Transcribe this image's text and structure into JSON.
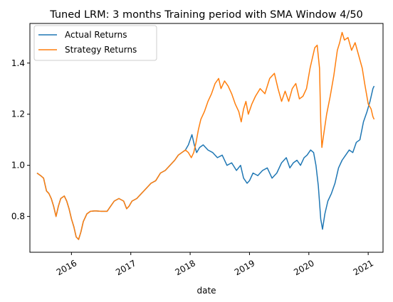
{
  "chart_data": {
    "type": "line",
    "title": "Tuned LRM: 3 months Training period with SMA Window 4/50",
    "xlabel": "date",
    "ylabel": "",
    "xlim": [
      2015.3,
      2021.25
    ],
    "ylim": [
      0.66,
      1.555
    ],
    "grid": false,
    "legend_position": "upper-left",
    "x_ticks": [
      {
        "label": "2016",
        "value": 2016.0
      },
      {
        "label": "2017",
        "value": 2017.0
      },
      {
        "label": "2018",
        "value": 2018.0
      },
      {
        "label": "2019",
        "value": 2019.0
      },
      {
        "label": "2020",
        "value": 2020.0
      },
      {
        "label": "2021",
        "value": 2021.0
      }
    ],
    "y_ticks": [
      {
        "label": "0.8",
        "value": 0.8
      },
      {
        "label": "1.0",
        "value": 1.0
      },
      {
        "label": "1.2",
        "value": 1.2
      },
      {
        "label": "1.4",
        "value": 1.4
      }
    ],
    "series": [
      {
        "name": "Actual Returns",
        "color": "#1f77b4",
        "points": [
          [
            2015.42,
            0.97
          ],
          [
            2015.48,
            0.96
          ],
          [
            2015.53,
            0.95
          ],
          [
            2015.58,
            0.9
          ],
          [
            2015.62,
            0.89
          ],
          [
            2015.66,
            0.87
          ],
          [
            2015.7,
            0.84
          ],
          [
            2015.74,
            0.8
          ],
          [
            2015.78,
            0.84
          ],
          [
            2015.82,
            0.87
          ],
          [
            2015.88,
            0.88
          ],
          [
            2015.92,
            0.86
          ],
          [
            2015.96,
            0.83
          ],
          [
            2016.0,
            0.79
          ],
          [
            2016.04,
            0.76
          ],
          [
            2016.08,
            0.72
          ],
          [
            2016.12,
            0.71
          ],
          [
            2016.16,
            0.74
          ],
          [
            2016.2,
            0.78
          ],
          [
            2016.26,
            0.81
          ],
          [
            2016.32,
            0.82
          ],
          [
            2016.4,
            0.822
          ],
          [
            2016.5,
            0.82
          ],
          [
            2016.6,
            0.82
          ],
          [
            2016.66,
            0.84
          ],
          [
            2016.72,
            0.86
          ],
          [
            2016.8,
            0.87
          ],
          [
            2016.88,
            0.86
          ],
          [
            2016.93,
            0.83
          ],
          [
            2016.97,
            0.84
          ],
          [
            2017.02,
            0.86
          ],
          [
            2017.1,
            0.87
          ],
          [
            2017.18,
            0.89
          ],
          [
            2017.26,
            0.91
          ],
          [
            2017.34,
            0.93
          ],
          [
            2017.42,
            0.94
          ],
          [
            2017.5,
            0.97
          ],
          [
            2017.58,
            0.98
          ],
          [
            2017.66,
            1.0
          ],
          [
            2017.74,
            1.02
          ],
          [
            2017.8,
            1.04
          ],
          [
            2017.86,
            1.05
          ],
          [
            2017.92,
            1.06
          ],
          [
            2017.97,
            1.08
          ],
          [
            2018.03,
            1.12
          ],
          [
            2018.07,
            1.08
          ],
          [
            2018.11,
            1.05
          ],
          [
            2018.16,
            1.07
          ],
          [
            2018.22,
            1.08
          ],
          [
            2018.3,
            1.06
          ],
          [
            2018.38,
            1.05
          ],
          [
            2018.46,
            1.03
          ],
          [
            2018.54,
            1.04
          ],
          [
            2018.62,
            1.0
          ],
          [
            2018.7,
            1.01
          ],
          [
            2018.78,
            0.98
          ],
          [
            2018.85,
            1.0
          ],
          [
            2018.9,
            0.95
          ],
          [
            2018.96,
            0.93
          ],
          [
            2019.0,
            0.94
          ],
          [
            2019.06,
            0.97
          ],
          [
            2019.14,
            0.96
          ],
          [
            2019.22,
            0.98
          ],
          [
            2019.3,
            0.99
          ],
          [
            2019.38,
            0.95
          ],
          [
            2019.46,
            0.97
          ],
          [
            2019.54,
            1.01
          ],
          [
            2019.62,
            1.03
          ],
          [
            2019.68,
            0.99
          ],
          [
            2019.74,
            1.01
          ],
          [
            2019.8,
            1.02
          ],
          [
            2019.86,
            1.0
          ],
          [
            2019.92,
            1.03
          ],
          [
            2019.97,
            1.04
          ],
          [
            2020.03,
            1.06
          ],
          [
            2020.08,
            1.05
          ],
          [
            2020.12,
            1.0
          ],
          [
            2020.16,
            0.92
          ],
          [
            2020.2,
            0.79
          ],
          [
            2020.23,
            0.75
          ],
          [
            2020.27,
            0.81
          ],
          [
            2020.32,
            0.86
          ],
          [
            2020.38,
            0.89
          ],
          [
            2020.44,
            0.93
          ],
          [
            2020.5,
            0.99
          ],
          [
            2020.56,
            1.02
          ],
          [
            2020.62,
            1.04
          ],
          [
            2020.68,
            1.06
          ],
          [
            2020.74,
            1.05
          ],
          [
            2020.8,
            1.09
          ],
          [
            2020.86,
            1.1
          ],
          [
            2020.92,
            1.17
          ],
          [
            2020.98,
            1.21
          ],
          [
            2021.03,
            1.25
          ],
          [
            2021.08,
            1.3
          ],
          [
            2021.1,
            1.31
          ]
        ]
      },
      {
        "name": "Strategy Returns",
        "color": "#ff7f0e",
        "points": [
          [
            2015.42,
            0.97
          ],
          [
            2015.48,
            0.96
          ],
          [
            2015.53,
            0.95
          ],
          [
            2015.58,
            0.9
          ],
          [
            2015.62,
            0.89
          ],
          [
            2015.66,
            0.87
          ],
          [
            2015.7,
            0.84
          ],
          [
            2015.74,
            0.8
          ],
          [
            2015.78,
            0.84
          ],
          [
            2015.82,
            0.87
          ],
          [
            2015.88,
            0.88
          ],
          [
            2015.92,
            0.86
          ],
          [
            2015.96,
            0.83
          ],
          [
            2016.0,
            0.79
          ],
          [
            2016.04,
            0.76
          ],
          [
            2016.08,
            0.72
          ],
          [
            2016.12,
            0.71
          ],
          [
            2016.16,
            0.74
          ],
          [
            2016.2,
            0.78
          ],
          [
            2016.26,
            0.81
          ],
          [
            2016.32,
            0.82
          ],
          [
            2016.4,
            0.822
          ],
          [
            2016.5,
            0.82
          ],
          [
            2016.6,
            0.82
          ],
          [
            2016.66,
            0.84
          ],
          [
            2016.72,
            0.86
          ],
          [
            2016.8,
            0.87
          ],
          [
            2016.88,
            0.86
          ],
          [
            2016.93,
            0.83
          ],
          [
            2016.97,
            0.84
          ],
          [
            2017.02,
            0.86
          ],
          [
            2017.1,
            0.87
          ],
          [
            2017.18,
            0.89
          ],
          [
            2017.26,
            0.91
          ],
          [
            2017.34,
            0.93
          ],
          [
            2017.42,
            0.94
          ],
          [
            2017.5,
            0.97
          ],
          [
            2017.58,
            0.98
          ],
          [
            2017.66,
            1.0
          ],
          [
            2017.74,
            1.02
          ],
          [
            2017.8,
            1.04
          ],
          [
            2017.86,
            1.05
          ],
          [
            2017.92,
            1.06
          ],
          [
            2017.97,
            1.05
          ],
          [
            2018.02,
            1.03
          ],
          [
            2018.06,
            1.05
          ],
          [
            2018.1,
            1.09
          ],
          [
            2018.14,
            1.14
          ],
          [
            2018.18,
            1.18
          ],
          [
            2018.24,
            1.21
          ],
          [
            2018.3,
            1.25
          ],
          [
            2018.36,
            1.28
          ],
          [
            2018.42,
            1.32
          ],
          [
            2018.48,
            1.34
          ],
          [
            2018.52,
            1.3
          ],
          [
            2018.58,
            1.33
          ],
          [
            2018.64,
            1.31
          ],
          [
            2018.7,
            1.28
          ],
          [
            2018.76,
            1.24
          ],
          [
            2018.82,
            1.21
          ],
          [
            2018.86,
            1.17
          ],
          [
            2018.9,
            1.22
          ],
          [
            2018.94,
            1.25
          ],
          [
            2018.98,
            1.2
          ],
          [
            2019.04,
            1.24
          ],
          [
            2019.1,
            1.27
          ],
          [
            2019.18,
            1.3
          ],
          [
            2019.26,
            1.28
          ],
          [
            2019.34,
            1.34
          ],
          [
            2019.42,
            1.36
          ],
          [
            2019.48,
            1.3
          ],
          [
            2019.54,
            1.25
          ],
          [
            2019.6,
            1.29
          ],
          [
            2019.66,
            1.25
          ],
          [
            2019.72,
            1.3
          ],
          [
            2019.78,
            1.32
          ],
          [
            2019.84,
            1.26
          ],
          [
            2019.9,
            1.27
          ],
          [
            2019.96,
            1.3
          ],
          [
            2020.02,
            1.38
          ],
          [
            2020.06,
            1.42
          ],
          [
            2020.1,
            1.46
          ],
          [
            2020.14,
            1.47
          ],
          [
            2020.18,
            1.38
          ],
          [
            2020.2,
            1.17
          ],
          [
            2020.22,
            1.07
          ],
          [
            2020.25,
            1.12
          ],
          [
            2020.3,
            1.2
          ],
          [
            2020.36,
            1.27
          ],
          [
            2020.42,
            1.35
          ],
          [
            2020.48,
            1.45
          ],
          [
            2020.52,
            1.48
          ],
          [
            2020.56,
            1.52
          ],
          [
            2020.6,
            1.49
          ],
          [
            2020.66,
            1.5
          ],
          [
            2020.72,
            1.45
          ],
          [
            2020.78,
            1.48
          ],
          [
            2020.84,
            1.43
          ],
          [
            2020.9,
            1.38
          ],
          [
            2020.94,
            1.32
          ],
          [
            2021.0,
            1.24
          ],
          [
            2021.05,
            1.22
          ],
          [
            2021.08,
            1.19
          ],
          [
            2021.1,
            1.18
          ]
        ]
      }
    ]
  }
}
